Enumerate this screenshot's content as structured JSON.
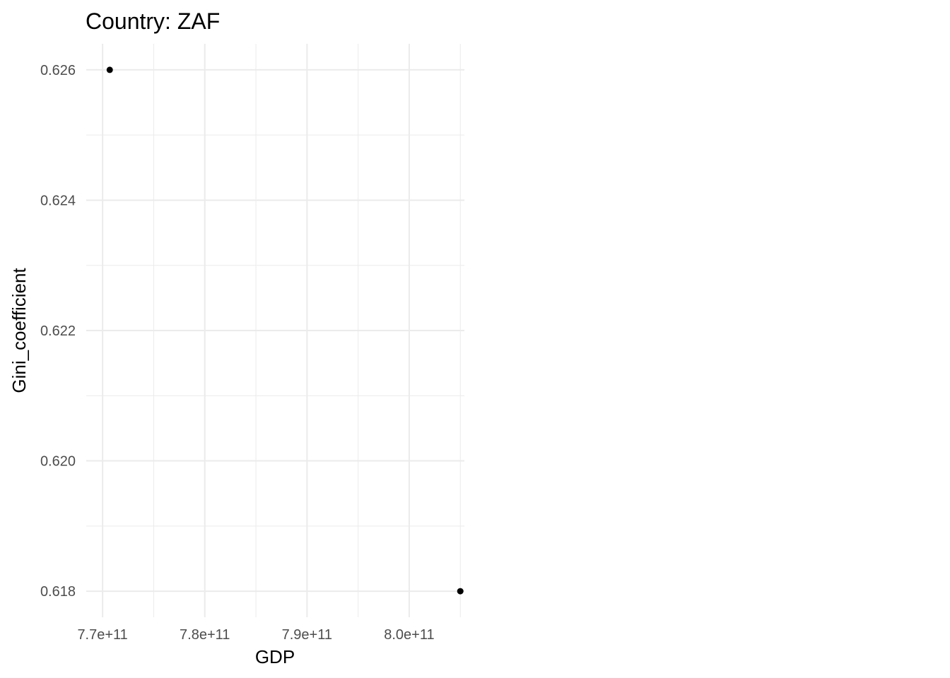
{
  "chart_data": {
    "type": "scatter",
    "title": "Country: ZAF",
    "xlabel": "GDP",
    "ylabel": "Gini_coefficient",
    "x_ticks": [
      {
        "value": 770000000000,
        "label": "7.7e+11"
      },
      {
        "value": 780000000000,
        "label": "7.8e+11"
      },
      {
        "value": 790000000000,
        "label": "7.9e+11"
      },
      {
        "value": 800000000000,
        "label": "8.0e+11"
      }
    ],
    "y_ticks": [
      {
        "value": 0.618,
        "label": "0.618"
      },
      {
        "value": 0.62,
        "label": "0.620"
      },
      {
        "value": 0.622,
        "label": "0.622"
      },
      {
        "value": 0.624,
        "label": "0.624"
      },
      {
        "value": 0.626,
        "label": "0.626"
      }
    ],
    "xlim": [
      768400000000,
      805400000000
    ],
    "ylim": [
      0.6176,
      0.6264
    ],
    "grid": true,
    "points": [
      {
        "x": 770700000000,
        "y": 0.626
      },
      {
        "x": 805000000000,
        "y": 0.618
      }
    ],
    "colors": {
      "point": "#000000",
      "grid": "#ebebeb",
      "tick_text": "#4d4d4d",
      "title_text": "#000000"
    }
  }
}
